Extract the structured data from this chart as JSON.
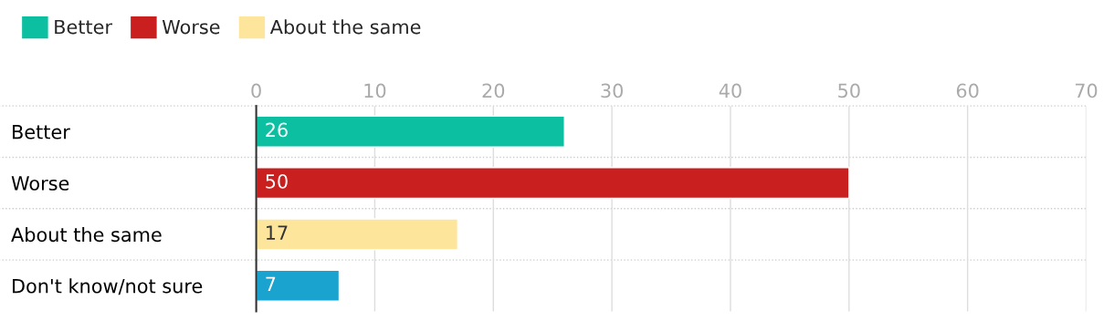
{
  "chart_data": {
    "type": "bar",
    "orientation": "horizontal",
    "categories": [
      "Better",
      "Worse",
      "About the same",
      "Don't know/not sure"
    ],
    "series": [
      {
        "name": "Better",
        "color": "#0bbfa0",
        "values": [
          26,
          null,
          null,
          null
        ]
      },
      {
        "name": "Worse",
        "color": "#c91f1f",
        "values": [
          null,
          50,
          null,
          null
        ]
      },
      {
        "name": "About the same",
        "color": "#fee59c",
        "values": [
          null,
          null,
          17,
          null
        ]
      },
      {
        "color": "#1ba3d0",
        "values": [
          null,
          null,
          null,
          7
        ]
      }
    ],
    "xlim": [
      0,
      70
    ],
    "xticks": [
      0,
      10,
      20,
      30,
      40,
      50,
      60,
      70
    ],
    "grid": true,
    "legend": "top left",
    "data_labels": true
  }
}
